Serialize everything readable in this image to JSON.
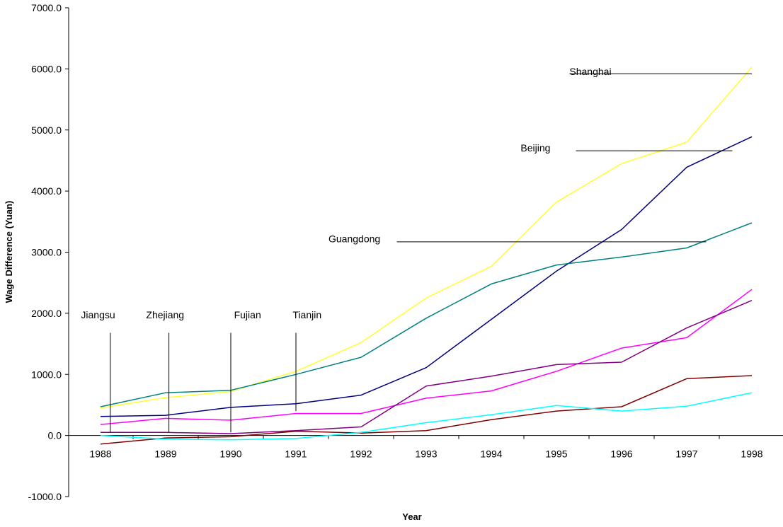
{
  "chart_data": {
    "type": "line",
    "title": "",
    "xlabel": "Year",
    "ylabel": "Wage Difference (Yuan)",
    "x": [
      "1988",
      "1989",
      "1990",
      "1991",
      "1992",
      "1993",
      "1994",
      "1995",
      "1996",
      "1997",
      "1998"
    ],
    "ylim": [
      -1000,
      7000
    ],
    "yticks": [
      "7000.0",
      "6000.0",
      "5000.0",
      "4000.0",
      "3000.0",
      "2000.0",
      "1000.0",
      "0.0",
      "-1000.0"
    ],
    "ytick_values": [
      7000,
      6000,
      5000,
      4000,
      3000,
      2000,
      1000,
      0,
      -1000
    ],
    "grid": false,
    "series": [
      {
        "name": "Shanghai",
        "color": "#ffff33",
        "values": [
          450,
          620,
          720,
          1050,
          1520,
          2250,
          2770,
          3820,
          4450,
          4800,
          6030
        ]
      },
      {
        "name": "Beijing",
        "color": "#000080",
        "values": [
          310,
          330,
          460,
          520,
          660,
          1110,
          1900,
          2690,
          3370,
          4390,
          4890
        ]
      },
      {
        "name": "Guangdong",
        "color": "#008080",
        "values": [
          470,
          700,
          740,
          1000,
          1280,
          1920,
          2480,
          2790,
          2920,
          3070,
          3480
        ]
      },
      {
        "name": "Jiangsu",
        "color": "#ff00ff",
        "values": [
          180,
          280,
          250,
          360,
          360,
          610,
          730,
          1050,
          1430,
          1600,
          2390
        ]
      },
      {
        "name": "Zhejiang",
        "color": "#800080",
        "values": [
          50,
          50,
          30,
          80,
          140,
          810,
          970,
          1160,
          1200,
          1760,
          2210
        ]
      },
      {
        "name": "Fujian",
        "color": "#800000",
        "values": [
          -140,
          -40,
          -20,
          70,
          40,
          80,
          260,
          400,
          470,
          930,
          980
        ]
      },
      {
        "name": "Tianjin",
        "color": "#00ffff",
        "values": [
          0,
          -60,
          -70,
          -50,
          50,
          210,
          340,
          490,
          400,
          480,
          700
        ]
      }
    ],
    "annotations": [
      {
        "label": "Shanghai",
        "text_x": 1995.2,
        "text_y": 5900,
        "line": [
          [
            1995.2,
            5920
          ],
          [
            1998,
            5920
          ]
        ]
      },
      {
        "label": "Beijing",
        "text_x": 1994.45,
        "text_y": 4650,
        "line": [
          [
            1995.3,
            4660
          ],
          [
            1997.7,
            4660
          ]
        ]
      },
      {
        "label": "Guangdong",
        "text_x": 1991.5,
        "text_y": 3160,
        "line": [
          [
            1992.55,
            3170
          ],
          [
            1997.3,
            3170
          ]
        ]
      },
      {
        "label": "Jiangsu",
        "text_x": 1987.7,
        "text_y": 1920,
        "line": [
          [
            1988.15,
            1680
          ],
          [
            1988.15,
            50
          ]
        ]
      },
      {
        "label": "Zhejiang",
        "text_x": 1988.7,
        "text_y": 1920,
        "line": [
          [
            1989.05,
            1680
          ],
          [
            1989.05,
            50
          ]
        ]
      },
      {
        "label": "Fujian",
        "text_x": 1990.05,
        "text_y": 1920,
        "line": [
          [
            1990.0,
            1680
          ],
          [
            1990.0,
            50
          ]
        ]
      },
      {
        "label": "Tianjin",
        "text_x": 1990.95,
        "text_y": 1920,
        "line": [
          [
            1991.0,
            1680
          ],
          [
            1991.0,
            400
          ]
        ]
      }
    ]
  }
}
